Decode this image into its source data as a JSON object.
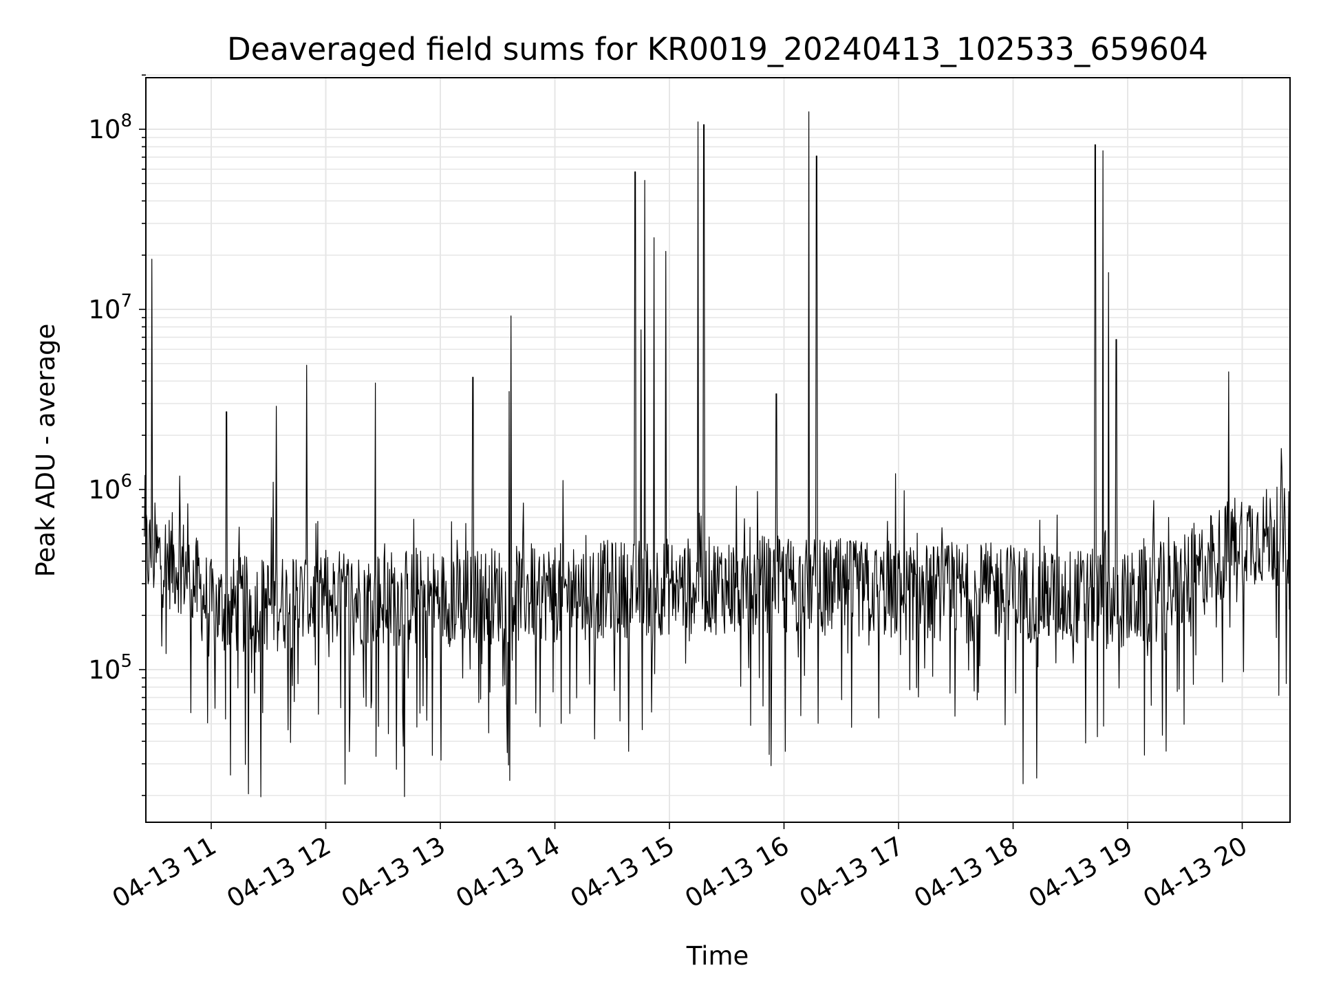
{
  "chart_data": {
    "type": "line",
    "title": "Deaveraged field sums for KR0019_20240413_102533_659604",
    "xlabel": "Time",
    "ylabel": "Peak ADU - average",
    "yscale": "log",
    "ylim": [
      15000,
      200000000
    ],
    "xlim": [
      "04-13 10:25",
      "04-13 20:00"
    ],
    "grid": true,
    "legend": "none",
    "line_color": "#000000",
    "x_ticks": [
      "04-13 11",
      "04-13 12",
      "04-13 13",
      "04-13 14",
      "04-13 15",
      "04-13 16",
      "04-13 17",
      "04-13 18",
      "04-13 19",
      "04-13 20"
    ],
    "y_ticks": [
      {
        "base": "10",
        "exp": "5",
        "value": 100000
      },
      {
        "base": "10",
        "exp": "6",
        "value": 1000000
      },
      {
        "base": "10",
        "exp": "7",
        "value": 10000000
      },
      {
        "base": "10",
        "exp": "8",
        "value": 100000000
      }
    ],
    "series_baseline": [
      {
        "time": "04-13 10:25",
        "value": 450000
      },
      {
        "time": "04-13 10:45",
        "value": 380000
      },
      {
        "time": "04-13 11:00",
        "value": 220000
      },
      {
        "time": "04-13 12:00",
        "value": 250000
      },
      {
        "time": "04-13 13:00",
        "value": 250000
      },
      {
        "time": "04-13 14:00",
        "value": 270000
      },
      {
        "time": "04-13 15:00",
        "value": 290000
      },
      {
        "time": "04-13 16:00",
        "value": 300000
      },
      {
        "time": "04-13 17:00",
        "value": 270000
      },
      {
        "time": "04-13 18:00",
        "value": 270000
      },
      {
        "time": "04-13 19:00",
        "value": 240000
      },
      {
        "time": "04-13 19:30",
        "value": 300000
      },
      {
        "time": "04-13 20:00",
        "value": 550000
      }
    ],
    "spikes": [
      {
        "time": "04-13 10:29",
        "value": 19000000
      },
      {
        "time": "04-13 11:08",
        "value": 2700000
      },
      {
        "time": "04-13 11:34",
        "value": 2900000
      },
      {
        "time": "04-13 11:50",
        "value": 4900000
      },
      {
        "time": "04-13 12:26",
        "value": 3900000
      },
      {
        "time": "04-13 13:17",
        "value": 4200000
      },
      {
        "time": "04-13 13:36",
        "value": 3500000
      },
      {
        "time": "04-13 13:37",
        "value": 9200000
      },
      {
        "time": "04-13 14:42",
        "value": 58000000
      },
      {
        "time": "04-13 14:45",
        "value": 7700000
      },
      {
        "time": "04-13 14:47",
        "value": 52000000
      },
      {
        "time": "04-13 14:52",
        "value": 25000000
      },
      {
        "time": "04-13 14:58",
        "value": 21000000
      },
      {
        "time": "04-13 15:15",
        "value": 110000000
      },
      {
        "time": "04-13 15:18",
        "value": 106000000
      },
      {
        "time": "04-13 15:56",
        "value": 3400000
      },
      {
        "time": "04-13 16:13",
        "value": 125000000
      },
      {
        "time": "04-13 16:17",
        "value": 71000000
      },
      {
        "time": "04-13 18:43",
        "value": 82000000
      },
      {
        "time": "04-13 18:47",
        "value": 76000000
      },
      {
        "time": "04-13 18:50",
        "value": 16000000
      },
      {
        "time": "04-13 18:54",
        "value": 6800000
      },
      {
        "time": "04-13 19:53",
        "value": 4500000
      }
    ]
  }
}
